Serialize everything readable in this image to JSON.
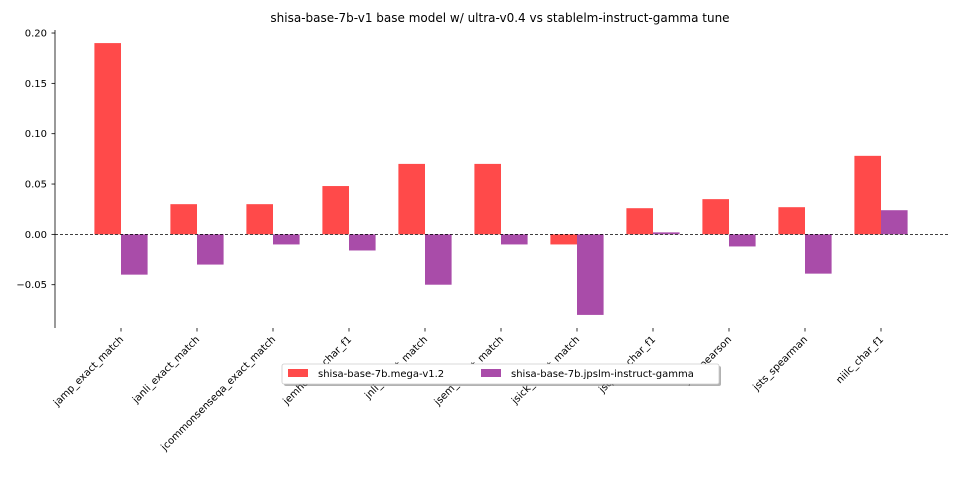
{
  "chart_data": {
    "type": "bar",
    "title": "shisa-base-7b-v1 base model w/ ultra-v0.4 vs stablelm-instruct-gamma tune",
    "xlabel": "",
    "ylabel": "",
    "categories": [
      "jamp_exact_match",
      "janli_exact_match",
      "jcommonsenseqa_exact_match",
      "jemhopqa_char_f1",
      "jnli_exact_match",
      "jsem_exact_match",
      "jsick_exact_match",
      "jsquad_char_f1",
      "jsts_pearson",
      "jsts_spearman",
      "niilc_char_f1"
    ],
    "series": [
      {
        "name": "shisa-base-7b.mega-v1.2",
        "color": "#ff4a4a",
        "values": [
          0.19,
          0.03,
          0.03,
          0.048,
          0.07,
          0.07,
          -0.01,
          0.026,
          0.035,
          0.027,
          0.078
        ]
      },
      {
        "name": "shisa-base-7b.jpslm-instruct-gamma",
        "color": "#a94ca9",
        "values": [
          -0.04,
          -0.03,
          -0.01,
          -0.016,
          -0.05,
          -0.01,
          -0.08,
          0.002,
          -0.012,
          -0.039,
          0.024
        ]
      }
    ],
    "ylim": [
      -0.093,
      0.203
    ],
    "yticks": [
      -0.05,
      0.0,
      0.05,
      0.1,
      0.15,
      0.2
    ],
    "ytick_labels": [
      "−0.05",
      "0.00",
      "0.05",
      "0.10",
      "0.15",
      "0.20"
    ],
    "zero_line": true,
    "grid": false,
    "legend_position": "center, overlapping x tick labels"
  }
}
